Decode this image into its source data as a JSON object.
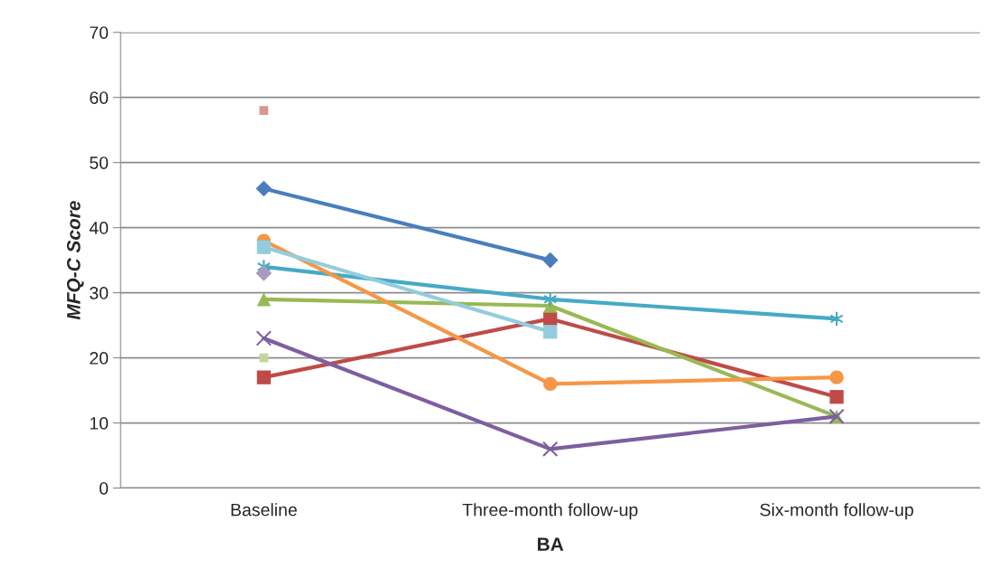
{
  "chart_data": {
    "type": "line",
    "xlabel": "BA",
    "ylabel": "MFQ-C Score",
    "categories": [
      "Baseline",
      "Three-month follow-up",
      "Six-month follow-up"
    ],
    "series": [
      {
        "color": "#4a7ebb",
        "marker": "diamond",
        "values": [
          46,
          35,
          null
        ]
      },
      {
        "color": "#be4b48",
        "marker": "square",
        "values": [
          17,
          26,
          14
        ]
      },
      {
        "color": "#98b954",
        "marker": "triangle",
        "values": [
          29,
          28,
          11
        ]
      },
      {
        "color": "#7d5fa0",
        "marker": "cross",
        "values": [
          23,
          6,
          11
        ]
      },
      {
        "color": "#46aac5",
        "marker": "cross",
        "values": [
          34,
          29,
          26
        ]
      },
      {
        "color": "#f79646",
        "marker": "circle",
        "values": [
          38,
          16,
          17
        ]
      },
      {
        "color": "#93cddd",
        "marker": "square",
        "values": [
          37,
          24,
          null
        ]
      },
      {
        "color": "#a99bbd",
        "marker": "diamond",
        "values": [
          33,
          null,
          null
        ]
      },
      {
        "color": "#c3d69b",
        "marker": "square",
        "values": [
          20,
          null,
          null
        ]
      },
      {
        "color": "#d99694",
        "marker": "square",
        "values": [
          58,
          null,
          null
        ]
      }
    ],
    "ylim": [
      0,
      70
    ],
    "yticks": [
      0,
      10,
      20,
      30,
      40,
      50,
      60,
      70
    ],
    "grid": "y",
    "legend": false
  }
}
